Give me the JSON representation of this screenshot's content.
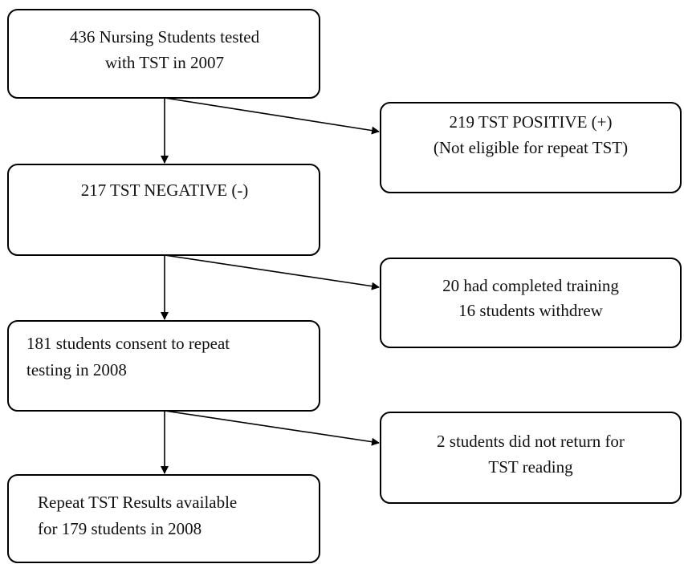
{
  "nodes": [
    {
      "lines": [
        "436 Nursing Students tested",
        "with TST in 2007"
      ]
    },
    {
      "lines": [
        "219 TST POSITIVE (+)",
        "(Not eligible for repeat TST)"
      ]
    },
    {
      "lines": [
        "217 TST NEGATIVE (-)"
      ]
    },
    {
      "lines": [
        "20 had completed training",
        "16 students withdrew"
      ]
    },
    {
      "lines": [
        "181 students consent to repeat",
        "testing in 2008"
      ]
    },
    {
      "lines": [
        "2 students did not return for",
        "TST reading"
      ]
    },
    {
      "lines": [
        "Repeat TST Results available",
        "for 179 students in 2008"
      ]
    }
  ]
}
